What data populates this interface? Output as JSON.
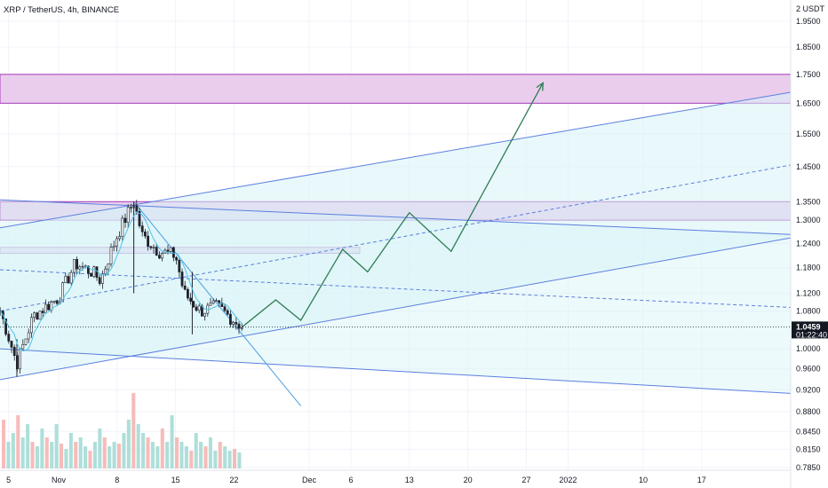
{
  "chart_data": {
    "type": "candlestick",
    "title": "XRP / TetherUS, 4h, BINANCE",
    "currency": "USDT",
    "y_axis": {
      "scale": "log",
      "top_label": "2 USDT",
      "ticks": [
        "1.9500",
        "1.8500",
        "1.7500",
        "1.6500",
        "1.5500",
        "1.4500",
        "1.3500",
        "1.3000",
        "1.2400",
        "1.1800",
        "1.1200",
        "1.0800",
        "1.0000",
        "0.9600",
        "0.9200",
        "0.8800",
        "0.8450",
        "0.8150",
        "0.7850"
      ]
    },
    "x_axis": {
      "ticks": [
        "5",
        "Nov",
        "8",
        "15",
        "22",
        "Dec",
        "6",
        "13",
        "20",
        "27",
        "2022",
        "10",
        "17"
      ]
    },
    "last_price": {
      "value": "1.0459",
      "countdown": "01:22:40"
    },
    "grid": true,
    "price_path": [
      {
        "date": "2021-10-25",
        "price": 1.08
      },
      {
        "date": "2021-10-27",
        "price": 0.97
      },
      {
        "date": "2021-10-29",
        "price": 1.07
      },
      {
        "date": "2021-11-01",
        "price": 1.11
      },
      {
        "date": "2021-11-03",
        "price": 1.19
      },
      {
        "date": "2021-11-05",
        "price": 1.17
      },
      {
        "date": "2021-11-06",
        "price": 1.15
      },
      {
        "date": "2021-11-08",
        "price": 1.26
      },
      {
        "date": "2021-11-10",
        "price": 1.35
      },
      {
        "date": "2021-11-11",
        "price": 1.26
      },
      {
        "date": "2021-11-13",
        "price": 1.22
      },
      {
        "date": "2021-11-15",
        "price": 1.21
      },
      {
        "date": "2021-11-16",
        "price": 1.12
      },
      {
        "date": "2021-11-18",
        "price": 1.08
      },
      {
        "date": "2021-11-20",
        "price": 1.09
      },
      {
        "date": "2021-11-22",
        "price": 1.06
      },
      {
        "date": "2021-11-23",
        "price": 1.046
      }
    ],
    "volume": [
      0.55,
      0.3,
      0.4,
      0.6,
      0.35,
      0.5,
      0.3,
      0.25,
      0.45,
      0.35,
      0.3,
      0.5,
      0.28,
      0.22,
      0.4,
      0.3,
      0.35,
      0.25,
      0.2,
      0.3,
      0.45,
      0.35,
      0.25,
      0.3,
      0.28,
      0.4,
      0.55,
      0.85,
      0.5,
      0.4,
      0.35,
      0.3,
      0.25,
      0.45,
      0.3,
      0.6,
      0.35,
      0.3,
      0.25,
      0.2,
      0.4,
      0.3,
      0.25,
      0.35,
      0.2,
      0.3,
      0.25,
      0.2,
      0.22,
      0.18
    ],
    "projection_path": [
      {
        "date": "2021-11-23",
        "price": 1.046
      },
      {
        "date": "2021-11-27",
        "price": 1.105
      },
      {
        "date": "2021-11-30",
        "price": 1.06
      },
      {
        "date": "2021-12-05",
        "price": 1.225
      },
      {
        "date": "2021-12-08",
        "price": 1.17
      },
      {
        "date": "2021-12-13",
        "price": 1.32
      },
      {
        "date": "2021-12-18",
        "price": 1.22
      },
      {
        "date": "2021-12-29",
        "price": 1.72
      }
    ],
    "zones": [
      {
        "name": "resistance-zone-upper",
        "price_low": 1.65,
        "price_high": 1.75
      },
      {
        "name": "resistance-zone-middle",
        "price_low": 1.3,
        "price_high": 1.35
      },
      {
        "name": "resistance-zone-lower",
        "price_low": 1.215,
        "price_high": 1.23
      }
    ],
    "colors": {
      "candle_up": "#26a69a",
      "candle_down": "#ef5350",
      "candles": "#1e222d",
      "trendline": "#5b7fdf",
      "channel_fill": "#d7f3f6",
      "zone_fill": "#e8c8ec",
      "zone_border": "#9c27b0",
      "projection": "#2e7d55",
      "ma_line": "#4dc3ea",
      "price_label_bg": "#131722"
    }
  }
}
